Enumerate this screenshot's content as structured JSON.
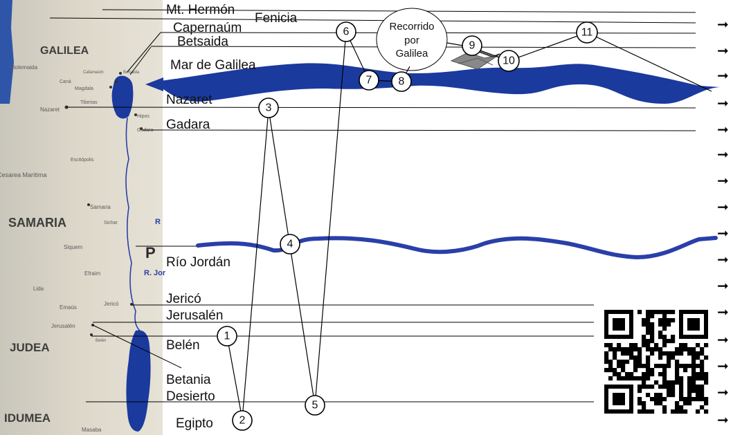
{
  "map": {
    "regions": [
      "GALILEA",
      "SAMARIA",
      "JUDEA",
      "IDUMEA"
    ],
    "towns": [
      "Ptolemaida",
      "Caná",
      "Magdala",
      "Tiberias",
      "Nazaret",
      "Cafarnaúm",
      "Betsaida",
      "Hipos",
      "Gadara",
      "Cesarea Marítima",
      "Escitópolis",
      "Samaria",
      "Sichar",
      "Siquem",
      "Efraim",
      "Lida",
      "Emaús",
      "Jericó",
      "Jerusalén",
      "Belén",
      "Masaba"
    ],
    "partial_labels": {
      "p_letter": "P",
      "r_jor": "R. Jor",
      "r_left": "R"
    }
  },
  "places": {
    "mt_hermon": "Mt. Hermón",
    "fenicia": "Fenicia",
    "capernaum": "Capernaúm",
    "betsaida": "Betsaida",
    "mar_galilea": "Mar de Galilea",
    "nazaret": "Nazaret",
    "gadara": "Gadara",
    "rio_jordan": "Río Jordán",
    "jerico": "Jericó",
    "jerusalen": "Jerusalén",
    "belen": "Belén",
    "betania": "Betania",
    "desierto": "Desierto",
    "egipto": "Egipto"
  },
  "recorrido": {
    "line1": "Recorrido",
    "line2": "por",
    "line3": "Galilea"
  },
  "stops": [
    "1",
    "2",
    "3",
    "4",
    "5",
    "6",
    "7",
    "8",
    "9",
    "10",
    "11"
  ],
  "arrow_glyph": "➞",
  "colors": {
    "water": "#1b3a9e",
    "river": "#2a3fa8",
    "land": "#d9d3c4",
    "sea_strip": "#1f3fa6"
  }
}
